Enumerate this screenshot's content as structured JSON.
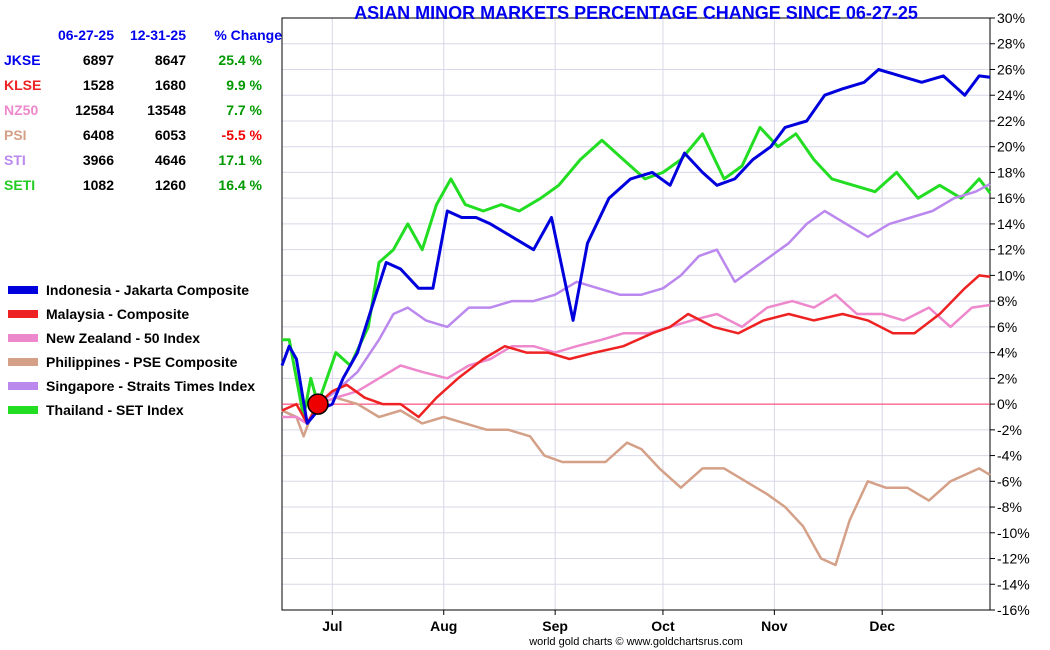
{
  "chart_data": {
    "type": "line",
    "title": "ASIAN MINOR MARKETS PERCENTAGE CHANGE SINCE 06-27-25",
    "credit": "world gold charts © www.goldchartsrus.com",
    "x_range": [
      "2025-06-17",
      "2025-12-31"
    ],
    "x_ticks": [
      {
        "label": "Jul",
        "date": "2025-07-01"
      },
      {
        "label": "Aug",
        "date": "2025-08-01"
      },
      {
        "label": "Sep",
        "date": "2025-09-01"
      },
      {
        "label": "Oct",
        "date": "2025-10-01"
      },
      {
        "label": "Nov",
        "date": "2025-11-01"
      },
      {
        "label": "Dec",
        "date": "2025-12-01"
      }
    ],
    "y_range": [
      -16,
      30
    ],
    "y_ticks": [
      "30%",
      "28%",
      "26%",
      "24%",
      "22%",
      "20%",
      "18%",
      "16%",
      "14%",
      "12%",
      "10%",
      "8%",
      "6%",
      "4%",
      "2%",
      "0%",
      "-2%",
      "-4%",
      "-6%",
      "-8%",
      "-10%",
      "-12%",
      "-14%",
      "-16%"
    ],
    "y_axis_side": "right",
    "grid": true,
    "zero_line_color": "#ff3366",
    "marker": {
      "date": "2025-06-27",
      "value": 0,
      "color": "#ee0000"
    },
    "table": {
      "headers": [
        "",
        "06-27-25",
        "12-31-25",
        "% Change"
      ],
      "rows": [
        {
          "code": "JKSE",
          "start": "6897",
          "end": "8647",
          "change": "25.4 %",
          "code_color": "#0000ee",
          "change_color": "#009900"
        },
        {
          "code": "KLSE",
          "start": "1528",
          "end": "1680",
          "change": "9.9 %",
          "code_color": "#ee2222",
          "change_color": "#009900"
        },
        {
          "code": "NZ50",
          "start": "12584",
          "end": "13548",
          "change": "7.7 %",
          "code_color": "#ee88cc",
          "change_color": "#009900"
        },
        {
          "code": "PSI",
          "start": "6408",
          "end": "6053",
          "change": "-5.5 %",
          "code_color": "#d4a088",
          "change_color": "#ee0000"
        },
        {
          "code": "STI",
          "start": "3966",
          "end": "4646",
          "change": "17.1 %",
          "code_color": "#bb88ee",
          "change_color": "#009900"
        },
        {
          "code": "SETI",
          "start": "1082",
          "end": "1260",
          "change": "16.4 %",
          "code_color": "#22cc22",
          "change_color": "#009900"
        }
      ]
    },
    "series": [
      {
        "name": "Indonesia - Jakarta Composite",
        "color": "#0000dd",
        "x": [
          "2025-06-17",
          "2025-06-19",
          "2025-06-21",
          "2025-06-24",
          "2025-06-27",
          "2025-07-01",
          "2025-07-04",
          "2025-07-08",
          "2025-07-12",
          "2025-07-16",
          "2025-07-20",
          "2025-07-25",
          "2025-07-29",
          "2025-08-02",
          "2025-08-06",
          "2025-08-10",
          "2025-08-14",
          "2025-08-20",
          "2025-08-26",
          "2025-08-31",
          "2025-09-06",
          "2025-09-10",
          "2025-09-16",
          "2025-09-22",
          "2025-09-28",
          "2025-10-03",
          "2025-10-07",
          "2025-10-12",
          "2025-10-16",
          "2025-10-21",
          "2025-10-26",
          "2025-10-31",
          "2025-11-04",
          "2025-11-10",
          "2025-11-15",
          "2025-11-20",
          "2025-11-26",
          "2025-11-30",
          "2025-12-06",
          "2025-12-12",
          "2025-12-18",
          "2025-12-24",
          "2025-12-28",
          "2025-12-31"
        ],
        "y": [
          3.0,
          4.5,
          3.5,
          -1.5,
          -0.5,
          0.0,
          2.0,
          4.0,
          7.5,
          11.0,
          10.5,
          9.0,
          9.0,
          15.0,
          14.5,
          14.5,
          14.0,
          13.0,
          12.0,
          14.5,
          6.5,
          12.5,
          16.0,
          17.5,
          18.0,
          17.0,
          19.5,
          18.0,
          17.0,
          17.5,
          19.0,
          20.0,
          21.5,
          22.0,
          24.0,
          24.5,
          25.0,
          26.0,
          25.5,
          25.0,
          25.5,
          24.0,
          25.5,
          25.4
        ]
      },
      {
        "name": "Malaysia - Composite",
        "color": "#ee2222",
        "x": [
          "2025-06-17",
          "2025-06-21",
          "2025-06-24",
          "2025-06-27",
          "2025-07-01",
          "2025-07-05",
          "2025-07-10",
          "2025-07-15",
          "2025-07-20",
          "2025-07-25",
          "2025-07-30",
          "2025-08-05",
          "2025-08-12",
          "2025-08-18",
          "2025-08-24",
          "2025-08-30",
          "2025-09-05",
          "2025-09-12",
          "2025-09-20",
          "2025-09-28",
          "2025-10-03",
          "2025-10-08",
          "2025-10-15",
          "2025-10-22",
          "2025-10-29",
          "2025-11-05",
          "2025-11-12",
          "2025-11-20",
          "2025-11-27",
          "2025-12-04",
          "2025-12-10",
          "2025-12-17",
          "2025-12-24",
          "2025-12-28",
          "2025-12-31"
        ],
        "y": [
          -0.5,
          0.0,
          -1.5,
          0.0,
          1.0,
          1.5,
          0.5,
          0.0,
          0.0,
          -1.0,
          0.5,
          2.0,
          3.5,
          4.5,
          4.0,
          4.0,
          3.5,
          4.0,
          4.5,
          5.5,
          6.0,
          7.0,
          6.0,
          5.5,
          6.5,
          7.0,
          6.5,
          7.0,
          6.5,
          5.5,
          5.5,
          7.0,
          9.0,
          10.0,
          9.9
        ]
      },
      {
        "name": "New Zealand - 50 Index",
        "color": "#ee88cc",
        "x": [
          "2025-06-17",
          "2025-06-21",
          "2025-06-24",
          "2025-06-27",
          "2025-07-02",
          "2025-07-08",
          "2025-07-14",
          "2025-07-20",
          "2025-07-26",
          "2025-08-02",
          "2025-08-08",
          "2025-08-14",
          "2025-08-20",
          "2025-08-26",
          "2025-09-01",
          "2025-09-07",
          "2025-09-14",
          "2025-09-20",
          "2025-09-27",
          "2025-10-03",
          "2025-10-09",
          "2025-10-16",
          "2025-10-23",
          "2025-10-30",
          "2025-11-06",
          "2025-11-12",
          "2025-11-18",
          "2025-11-24",
          "2025-12-01",
          "2025-12-07",
          "2025-12-14",
          "2025-12-20",
          "2025-12-26",
          "2025-12-31"
        ],
        "y": [
          -1.0,
          -1.0,
          -1.5,
          0.0,
          0.5,
          1.0,
          2.0,
          3.0,
          2.5,
          2.0,
          3.0,
          3.5,
          4.5,
          4.5,
          4.0,
          4.5,
          5.0,
          5.5,
          5.5,
          6.0,
          6.5,
          7.0,
          6.0,
          7.5,
          8.0,
          7.5,
          8.5,
          7.0,
          7.0,
          6.5,
          7.5,
          6.0,
          7.5,
          7.7
        ]
      },
      {
        "name": "Philippines - PSE Composite",
        "color": "#d4a088",
        "x": [
          "2025-06-17",
          "2025-06-21",
          "2025-06-23",
          "2025-06-25",
          "2025-06-27",
          "2025-07-02",
          "2025-07-08",
          "2025-07-14",
          "2025-07-20",
          "2025-07-26",
          "2025-08-01",
          "2025-08-07",
          "2025-08-13",
          "2025-08-19",
          "2025-08-25",
          "2025-08-29",
          "2025-09-03",
          "2025-09-09",
          "2025-09-15",
          "2025-09-21",
          "2025-09-25",
          "2025-09-30",
          "2025-10-06",
          "2025-10-12",
          "2025-10-18",
          "2025-10-24",
          "2025-10-30",
          "2025-11-04",
          "2025-11-09",
          "2025-11-14",
          "2025-11-18",
          "2025-11-22",
          "2025-11-27",
          "2025-12-02",
          "2025-12-08",
          "2025-12-14",
          "2025-12-20",
          "2025-12-24",
          "2025-12-28",
          "2025-12-31"
        ],
        "y": [
          -0.5,
          -1.0,
          -2.5,
          -1.0,
          0.0,
          0.5,
          0.0,
          -1.0,
          -0.5,
          -1.5,
          -1.0,
          -1.5,
          -2.0,
          -2.0,
          -2.5,
          -4.0,
          -4.5,
          -4.5,
          -4.5,
          -3.0,
          -3.5,
          -5.0,
          -6.5,
          -5.0,
          -5.0,
          -6.0,
          -7.0,
          -8.0,
          -9.5,
          -12.0,
          -12.5,
          -9.0,
          -6.0,
          -6.5,
          -6.5,
          -7.5,
          -6.0,
          -5.5,
          -5.0,
          -5.5
        ]
      },
      {
        "name": "Singapore - Straits Times Index",
        "color": "#bb88ee",
        "x": [
          "2025-06-17",
          "2025-06-21",
          "2025-06-24",
          "2025-06-27",
          "2025-07-02",
          "2025-07-08",
          "2025-07-14",
          "2025-07-18",
          "2025-07-22",
          "2025-07-27",
          "2025-08-02",
          "2025-08-08",
          "2025-08-14",
          "2025-08-20",
          "2025-08-26",
          "2025-09-01",
          "2025-09-07",
          "2025-09-13",
          "2025-09-19",
          "2025-09-25",
          "2025-10-01",
          "2025-10-06",
          "2025-10-11",
          "2025-10-16",
          "2025-10-21",
          "2025-10-26",
          "2025-10-31",
          "2025-11-05",
          "2025-11-10",
          "2025-11-15",
          "2025-11-21",
          "2025-11-27",
          "2025-12-03",
          "2025-12-09",
          "2025-12-15",
          "2025-12-21",
          "2025-12-27",
          "2025-12-31"
        ],
        "y": [
          -0.5,
          -1.0,
          -1.5,
          0.0,
          1.0,
          2.5,
          5.0,
          7.0,
          7.5,
          6.5,
          6.0,
          7.5,
          7.5,
          8.0,
          8.0,
          8.5,
          9.5,
          9.0,
          8.5,
          8.5,
          9.0,
          10.0,
          11.5,
          12.0,
          9.5,
          10.5,
          11.5,
          12.5,
          14.0,
          15.0,
          14.0,
          13.0,
          14.0,
          14.5,
          15.0,
          16.0,
          16.5,
          17.1
        ]
      },
      {
        "name": "Thailand - SET Index",
        "color": "#22dd22",
        "x": [
          "2025-06-17",
          "2025-06-19",
          "2025-06-21",
          "2025-06-23",
          "2025-06-25",
          "2025-06-27",
          "2025-07-02",
          "2025-07-06",
          "2025-07-11",
          "2025-07-14",
          "2025-07-18",
          "2025-07-22",
          "2025-07-26",
          "2025-07-30",
          "2025-08-03",
          "2025-08-07",
          "2025-08-12",
          "2025-08-17",
          "2025-08-22",
          "2025-08-28",
          "2025-09-02",
          "2025-09-08",
          "2025-09-14",
          "2025-09-20",
          "2025-09-26",
          "2025-10-01",
          "2025-10-06",
          "2025-10-12",
          "2025-10-18",
          "2025-10-23",
          "2025-10-28",
          "2025-11-02",
          "2025-11-07",
          "2025-11-12",
          "2025-11-17",
          "2025-11-23",
          "2025-11-29",
          "2025-12-05",
          "2025-12-11",
          "2025-12-17",
          "2025-12-23",
          "2025-12-28",
          "2025-12-31"
        ],
        "y": [
          5.0,
          5.0,
          2.0,
          -1.0,
          2.0,
          0.0,
          4.0,
          3.0,
          6.0,
          11.0,
          12.0,
          14.0,
          12.0,
          15.5,
          17.5,
          15.5,
          15.0,
          15.5,
          15.0,
          16.0,
          17.0,
          19.0,
          20.5,
          19.0,
          17.5,
          18.0,
          19.0,
          21.0,
          17.5,
          18.5,
          21.5,
          20.0,
          21.0,
          19.0,
          17.5,
          17.0,
          16.5,
          18.0,
          16.0,
          17.0,
          16.0,
          17.5,
          16.4
        ]
      }
    ]
  }
}
